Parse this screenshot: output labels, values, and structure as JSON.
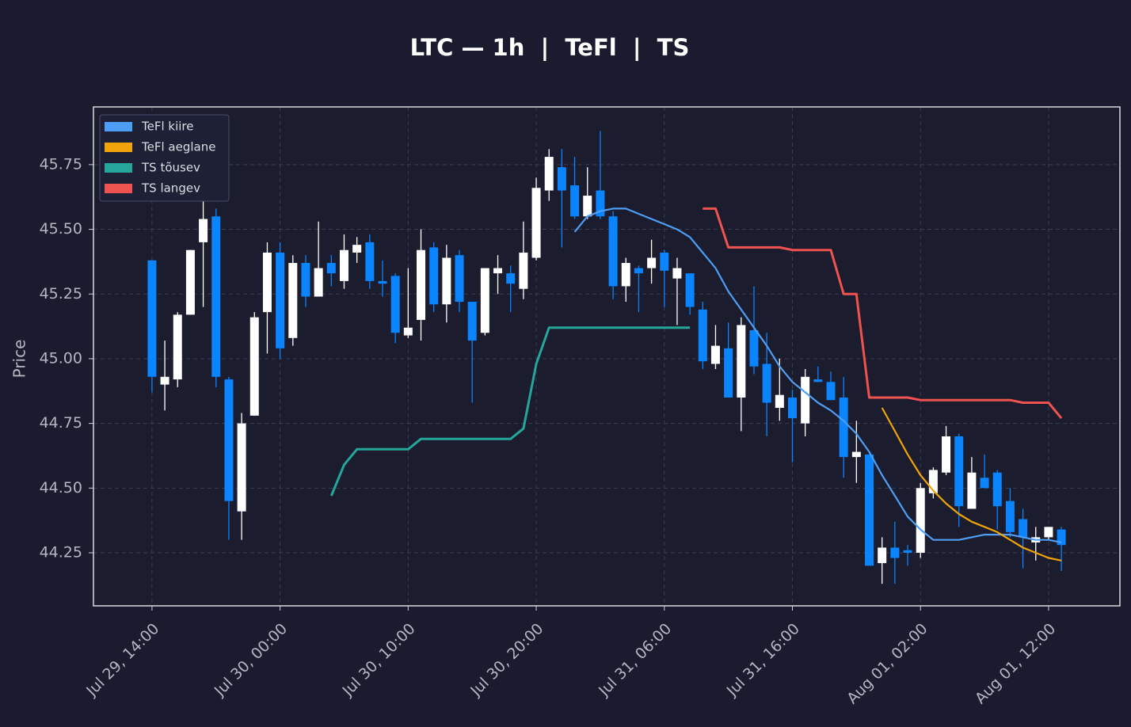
{
  "chart_data": {
    "type": "candlestick",
    "title": "LTC — 1h  |  TeFl  |  TS",
    "ylabel": "Price",
    "x": [
      "Jul 29, 14:00",
      "Jul 29, 15:00",
      "Jul 29, 16:00",
      "Jul 29, 17:00",
      "Jul 29, 18:00",
      "Jul 29, 19:00",
      "Jul 29, 20:00",
      "Jul 29, 21:00",
      "Jul 29, 22:00",
      "Jul 29, 23:00",
      "Jul 30, 00:00",
      "Jul 30, 01:00",
      "Jul 30, 02:00",
      "Jul 30, 03:00",
      "Jul 30, 04:00",
      "Jul 30, 05:00",
      "Jul 30, 06:00",
      "Jul 30, 07:00",
      "Jul 30, 08:00",
      "Jul 30, 09:00",
      "Jul 30, 10:00",
      "Jul 30, 11:00",
      "Jul 30, 12:00",
      "Jul 30, 13:00",
      "Jul 30, 14:00",
      "Jul 30, 15:00",
      "Jul 30, 16:00",
      "Jul 30, 17:00",
      "Jul 30, 18:00",
      "Jul 30, 19:00",
      "Jul 30, 20:00",
      "Jul 30, 21:00",
      "Jul 30, 22:00",
      "Jul 30, 23:00",
      "Jul 31, 00:00",
      "Jul 31, 01:00",
      "Jul 31, 02:00",
      "Jul 31, 03:00",
      "Jul 31, 04:00",
      "Jul 31, 05:00",
      "Jul 31, 06:00",
      "Jul 31, 07:00",
      "Jul 31, 08:00",
      "Jul 31, 09:00",
      "Jul 31, 10:00",
      "Jul 31, 11:00",
      "Jul 31, 12:00",
      "Jul 31, 13:00",
      "Jul 31, 14:00",
      "Jul 31, 15:00",
      "Jul 31, 16:00",
      "Jul 31, 17:00",
      "Jul 31, 18:00",
      "Jul 31, 19:00",
      "Jul 31, 20:00",
      "Jul 31, 21:00",
      "Jul 31, 22:00",
      "Jul 31, 23:00",
      "Aug 01, 00:00",
      "Aug 01, 01:00",
      "Aug 01, 02:00",
      "Aug 01, 03:00",
      "Aug 01, 04:00",
      "Aug 01, 05:00",
      "Aug 01, 06:00",
      "Aug 01, 07:00",
      "Aug 01, 08:00",
      "Aug 01, 09:00",
      "Aug 01, 10:00",
      "Aug 01, 11:00",
      "Aug 01, 12:00",
      "Aug 01, 13:00"
    ],
    "open": [
      45.38,
      44.9,
      44.92,
      45.17,
      45.45,
      45.55,
      44.92,
      44.41,
      44.78,
      45.18,
      45.41,
      45.08,
      45.37,
      45.24,
      45.37,
      45.3,
      45.41,
      45.45,
      45.3,
      45.32,
      45.09,
      45.15,
      45.43,
      45.21,
      45.4,
      45.22,
      45.1,
      45.33,
      45.33,
      45.27,
      45.39,
      45.65,
      45.74,
      45.67,
      45.55,
      45.65,
      45.55,
      45.28,
      45.35,
      45.35,
      45.41,
      45.31,
      45.33,
      45.19,
      44.98,
      45.04,
      44.85,
      45.11,
      44.98,
      44.81,
      44.85,
      44.75,
      44.92,
      44.91,
      44.85,
      44.62,
      44.63,
      44.21,
      44.27,
      44.26,
      44.25,
      44.48,
      44.56,
      44.7,
      44.42,
      44.54,
      44.56,
      44.45,
      44.38,
      44.29,
      44.31,
      44.34
    ],
    "high": [
      45.38,
      45.07,
      45.18,
      45.42,
      45.73,
      45.58,
      44.93,
      44.79,
      45.18,
      45.45,
      45.45,
      45.4,
      45.4,
      45.53,
      45.4,
      45.48,
      45.47,
      45.48,
      45.38,
      45.33,
      45.35,
      45.5,
      45.45,
      45.44,
      45.42,
      45.22,
      45.35,
      45.4,
      45.36,
      45.53,
      45.7,
      45.81,
      45.81,
      45.78,
      45.74,
      45.88,
      45.57,
      45.39,
      45.36,
      45.46,
      45.42,
      45.39,
      45.33,
      45.22,
      45.13,
      45.14,
      45.16,
      45.28,
      45.1,
      45.0,
      44.88,
      44.96,
      44.97,
      44.95,
      44.93,
      44.76,
      44.63,
      44.31,
      44.37,
      44.28,
      44.52,
      44.58,
      44.74,
      44.71,
      44.62,
      44.63,
      44.57,
      44.5,
      44.42,
      44.35,
      44.35,
      44.35
    ],
    "low": [
      44.87,
      44.8,
      44.89,
      45.17,
      45.2,
      44.89,
      44.3,
      44.3,
      44.78,
      45.02,
      45.0,
      45.05,
      45.2,
      45.24,
      45.28,
      45.27,
      45.37,
      45.27,
      45.24,
      45.06,
      45.08,
      45.07,
      45.18,
      45.14,
      45.18,
      44.83,
      45.09,
      45.25,
      45.18,
      45.23,
      45.38,
      45.61,
      45.43,
      45.54,
      45.54,
      45.54,
      45.23,
      45.22,
      45.18,
      45.29,
      45.2,
      45.13,
      45.17,
      44.96,
      44.96,
      44.85,
      44.72,
      44.94,
      44.7,
      44.76,
      44.6,
      44.7,
      44.91,
      44.84,
      44.54,
      44.52,
      44.2,
      44.13,
      44.13,
      44.2,
      44.23,
      44.46,
      44.55,
      44.35,
      44.42,
      44.5,
      44.34,
      44.31,
      44.19,
      44.22,
      44.3,
      44.18
    ],
    "close": [
      44.93,
      44.93,
      45.17,
      45.42,
      45.54,
      44.93,
      44.45,
      44.75,
      45.16,
      45.41,
      45.04,
      45.37,
      45.24,
      45.35,
      45.33,
      45.42,
      45.44,
      45.3,
      45.29,
      45.1,
      45.12,
      45.42,
      45.21,
      45.39,
      45.22,
      45.07,
      45.35,
      45.35,
      45.29,
      45.41,
      45.66,
      45.78,
      45.65,
      45.55,
      45.63,
      45.55,
      45.28,
      45.37,
      45.33,
      45.39,
      45.34,
      45.35,
      45.2,
      44.99,
      45.05,
      44.85,
      45.13,
      44.97,
      44.83,
      44.86,
      44.77,
      44.93,
      44.91,
      44.84,
      44.62,
      44.64,
      44.2,
      44.27,
      44.23,
      44.25,
      44.5,
      44.57,
      44.7,
      44.43,
      44.56,
      44.5,
      44.43,
      44.33,
      44.31,
      44.31,
      44.35,
      44.28
    ],
    "up_color": "#ffffff",
    "down_color": "#0a84ff",
    "series": [
      {
        "name": "TeFl kiire",
        "color": "#4f9ef5",
        "values": [
          null,
          null,
          null,
          null,
          null,
          null,
          null,
          null,
          null,
          null,
          null,
          null,
          null,
          null,
          null,
          null,
          null,
          null,
          null,
          null,
          null,
          null,
          null,
          null,
          null,
          null,
          null,
          null,
          null,
          null,
          null,
          null,
          null,
          45.49,
          45.55,
          45.57,
          45.58,
          45.58,
          45.56,
          45.54,
          45.52,
          45.5,
          45.47,
          45.41,
          45.35,
          45.26,
          45.19,
          45.12,
          45.05,
          44.97,
          44.91,
          44.87,
          44.83,
          44.8,
          44.76,
          44.71,
          44.64,
          44.55,
          44.47,
          44.39,
          44.34,
          44.3,
          44.3,
          44.3,
          44.31,
          44.32,
          44.32,
          44.32,
          44.31,
          44.3,
          44.3,
          44.29
        ]
      },
      {
        "name": "TeFl aeglane",
        "color": "#f0a30a",
        "values": [
          null,
          null,
          null,
          null,
          null,
          null,
          null,
          null,
          null,
          null,
          null,
          null,
          null,
          null,
          null,
          null,
          null,
          null,
          null,
          null,
          null,
          null,
          null,
          null,
          null,
          null,
          null,
          null,
          null,
          null,
          null,
          null,
          null,
          null,
          null,
          null,
          null,
          null,
          null,
          null,
          null,
          null,
          null,
          null,
          null,
          null,
          null,
          null,
          null,
          null,
          null,
          null,
          null,
          null,
          null,
          null,
          null,
          44.81,
          44.72,
          44.63,
          44.55,
          44.49,
          44.44,
          44.4,
          44.37,
          44.35,
          44.33,
          44.3,
          44.27,
          44.25,
          44.23,
          44.22
        ]
      },
      {
        "name": "TS tõusev",
        "color": "#26a69a",
        "values": [
          null,
          null,
          null,
          null,
          null,
          null,
          null,
          null,
          null,
          null,
          null,
          null,
          null,
          null,
          44.47,
          44.59,
          44.65,
          44.65,
          44.65,
          44.65,
          44.65,
          44.69,
          44.69,
          44.69,
          44.69,
          44.69,
          44.69,
          44.69,
          44.69,
          44.73,
          44.98,
          45.12,
          45.12,
          45.12,
          45.12,
          45.12,
          45.12,
          45.12,
          45.12,
          45.12,
          45.12,
          45.12,
          45.12,
          null,
          null,
          null,
          null,
          null,
          null,
          null,
          null,
          null,
          null,
          null,
          null,
          null,
          null,
          null,
          null,
          null,
          null,
          null,
          null,
          null,
          null,
          null,
          null,
          null,
          null,
          null,
          null,
          null
        ]
      },
      {
        "name": "TS langev",
        "color": "#ef5350",
        "values": [
          null,
          null,
          null,
          null,
          null,
          null,
          null,
          null,
          null,
          null,
          null,
          null,
          null,
          null,
          null,
          null,
          null,
          null,
          null,
          null,
          null,
          null,
          null,
          null,
          null,
          null,
          null,
          null,
          null,
          null,
          null,
          null,
          null,
          null,
          null,
          null,
          null,
          null,
          null,
          null,
          null,
          null,
          null,
          45.58,
          45.58,
          45.43,
          45.43,
          45.43,
          45.43,
          45.43,
          45.42,
          45.42,
          45.42,
          45.42,
          45.25,
          45.25,
          44.85,
          44.85,
          44.85,
          44.85,
          44.84,
          44.84,
          44.84,
          44.84,
          44.84,
          44.84,
          44.84,
          44.84,
          44.83,
          44.83,
          44.83,
          44.77
        ]
      }
    ],
    "ylim": [
      44.045,
      45.973
    ],
    "yticks": [
      44.25,
      {
        "value": 44.5,
        "label": "44.50"
      },
      44.75,
      {
        "value": 45,
        "label": "45.00"
      },
      45.25,
      {
        "value": 45.5,
        "label": "45.50"
      },
      45.75
    ],
    "xticks": [
      "Jul 29, 14:00",
      "Jul 30, 00:00",
      "Jul 30, 10:00",
      "Jul 30, 20:00",
      "Jul 31, 06:00",
      "Jul 31, 16:00",
      "Aug 01, 02:00",
      "Aug 01, 12:00"
    ],
    "grid": true,
    "legend": "upper left"
  }
}
